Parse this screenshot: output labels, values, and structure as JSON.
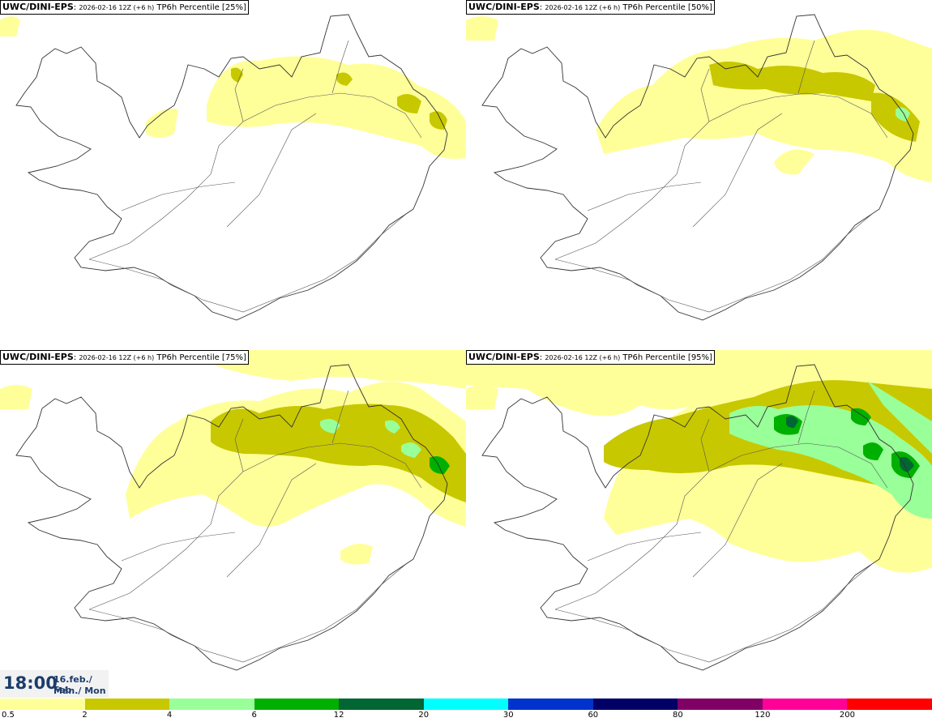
{
  "panels": [
    {
      "model": "UWC/DINI-EPS",
      "run": "2026-02-16 12Z (+6 h)",
      "product": "TP6h Percentile [25%]",
      "percentile": 25
    },
    {
      "model": "UWC/DINI-EPS",
      "run": "2026-02-16 12Z (+6 h)",
      "product": "TP6h Percentile [50%]",
      "percentile": 50
    },
    {
      "model": "UWC/DINI-EPS",
      "run": "2026-02-16 12Z (+6 h)",
      "product": "TP6h Percentile [75%]",
      "percentile": 75
    },
    {
      "model": "UWC/DINI-EPS",
      "run": "2026-02-16 12Z (+6 h)",
      "product": "TP6h Percentile [95%]",
      "percentile": 95
    }
  ],
  "valid_time": {
    "clock": "18:00",
    "date": "16.feb./ Feb",
    "day": "Mán./ Mon"
  },
  "legend": {
    "colors": [
      "#ffff99",
      "#c8c800",
      "#99ff99",
      "#00b000",
      "#006633",
      "#00ffff",
      "#0033cc",
      "#000066",
      "#800066",
      "#ff0099",
      "#ff0000"
    ],
    "labels": [
      "0.5",
      "2",
      "4",
      "6",
      "12",
      "20",
      "30",
      "60",
      "80",
      "120",
      "200"
    ]
  }
}
